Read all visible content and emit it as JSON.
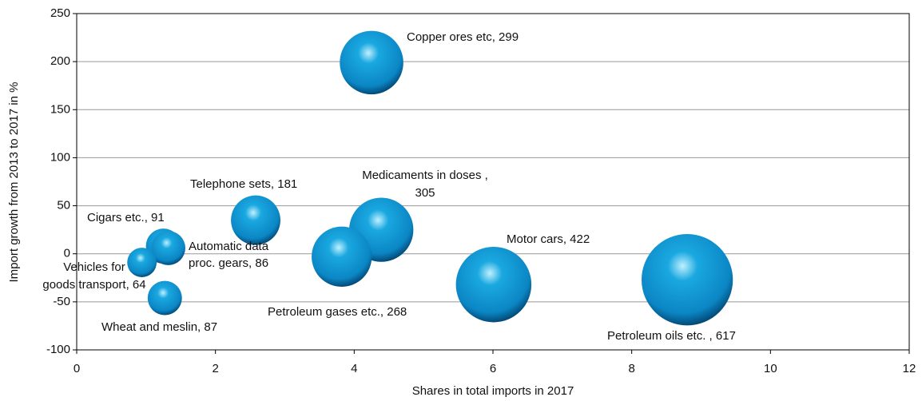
{
  "chart_data": {
    "type": "bubble",
    "xlabel": "Shares in total imports in 2017",
    "ylabel": "Import growth from 2013 to 2017 in %",
    "x": [
      4.25,
      4.39,
      2.58,
      1.25,
      1.32,
      0.94,
      1.27,
      3.82,
      6.01,
      8.8
    ],
    "y": [
      199,
      25,
      35,
      8,
      6,
      -9,
      -46,
      -3,
      -32,
      -27
    ],
    "size": [
      299,
      305,
      181,
      91,
      86,
      64,
      87,
      268,
      422,
      617
    ],
    "labels": [
      [
        "Copper ores etc, 299"
      ],
      [
        "Medicaments in doses ,",
        "305"
      ],
      [
        "Telephone sets, 181"
      ],
      [
        "Cigars etc., 91"
      ],
      [
        "Automatic data",
        "proc. gears, 86"
      ],
      [
        "Vehicles for",
        "goods transport, 64"
      ],
      [
        "Wheat and meslin, 87"
      ],
      [
        "Petroleum gases etc., 268"
      ],
      [
        "Motor cars, 422"
      ],
      [
        "Petroleum oils etc. , 617"
      ]
    ],
    "color": "#1aa8e0",
    "xlim": [
      0,
      12
    ],
    "ylim": [
      -100,
      250
    ],
    "xticks": [
      0,
      2,
      4,
      6,
      8,
      10,
      12
    ],
    "yticks": [
      -100,
      -50,
      0,
      50,
      100,
      150,
      200,
      250
    ],
    "grid": true
  }
}
